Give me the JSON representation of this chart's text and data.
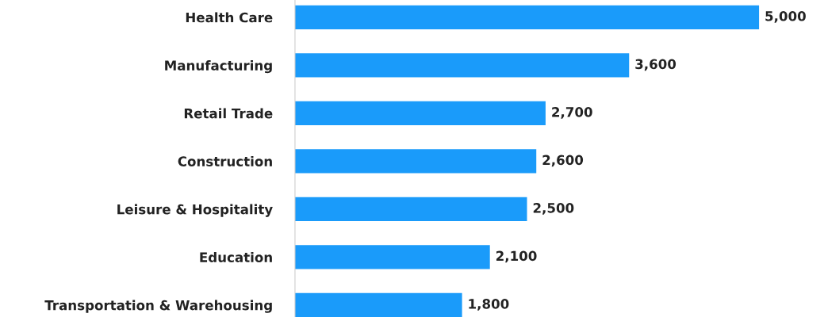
{
  "chart_data": {
    "type": "bar",
    "orientation": "horizontal",
    "categories": [
      "Health Care",
      "Manufacturing",
      "Retail Trade",
      "Construction",
      "Leisure & Hospitality",
      "Education",
      "Transportation & Warehousing"
    ],
    "values": [
      5000,
      3600,
      2700,
      2600,
      2500,
      2100,
      1800
    ],
    "value_labels": [
      "5,000",
      "3,600",
      "2,700",
      "2,600",
      "2,500",
      "2,100",
      "1,800"
    ],
    "color": "#1a9bfa",
    "grid": false,
    "legend": false
  }
}
